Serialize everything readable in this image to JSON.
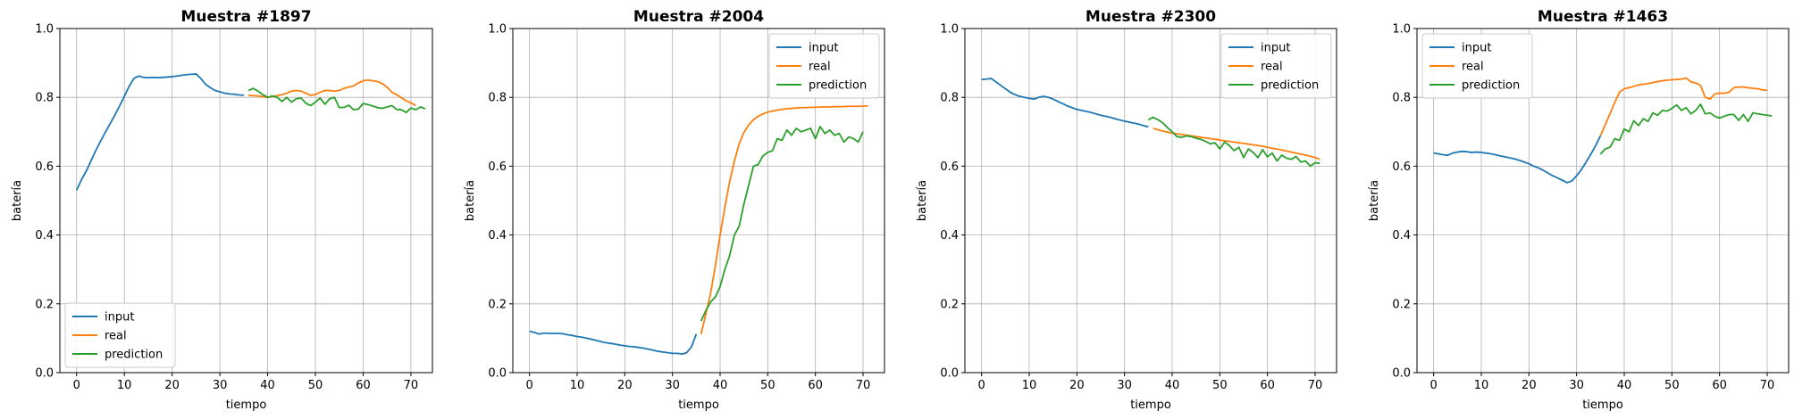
{
  "chart_data": [
    {
      "type": "line",
      "title": "Muestra #1897",
      "xlabel": "tiempo",
      "ylabel": "batería",
      "xlim": [
        -3.5,
        74.5
      ],
      "ylim": [
        0.0,
        1.0
      ],
      "xticks": [
        0,
        10,
        20,
        30,
        40,
        50,
        60,
        70
      ],
      "yticks": [
        0.0,
        0.2,
        0.4,
        0.6,
        0.8,
        1.0
      ],
      "xtick_labels": [
        "0",
        "10",
        "20",
        "30",
        "40",
        "50",
        "60",
        "70"
      ],
      "ytick_labels": [
        "0.0",
        "0.2",
        "0.4",
        "0.6",
        "0.8",
        "1.0"
      ],
      "grid": true,
      "legend_position": "lower-left",
      "series": [
        {
          "name": "input",
          "color": "#1f77b4",
          "x_start": 0,
          "values": [
            0.53,
            0.56,
            0.585,
            0.615,
            0.645,
            0.672,
            0.698,
            0.723,
            0.748,
            0.775,
            0.803,
            0.832,
            0.855,
            0.862,
            0.858,
            0.857,
            0.858,
            0.857,
            0.858,
            0.859,
            0.86,
            0.862,
            0.864,
            0.866,
            0.867,
            0.868,
            0.855,
            0.838,
            0.828,
            0.82,
            0.816,
            0.812,
            0.81,
            0.809,
            0.807,
            0.806
          ]
        },
        {
          "name": "real",
          "color": "#ff7f0e",
          "x_start": 36,
          "values": [
            0.806,
            0.805,
            0.804,
            0.802,
            0.8,
            0.802,
            0.805,
            0.808,
            0.812,
            0.818,
            0.82,
            0.818,
            0.812,
            0.806,
            0.808,
            0.815,
            0.82,
            0.82,
            0.818,
            0.82,
            0.826,
            0.83,
            0.833,
            0.842,
            0.848,
            0.85,
            0.848,
            0.846,
            0.84,
            0.83,
            0.815,
            0.808,
            0.799,
            0.79,
            0.784,
            0.776
          ]
        },
        {
          "name": "prediction",
          "color": "#2ca02c",
          "x_start": 36,
          "values": [
            0.82,
            0.826,
            0.818,
            0.808,
            0.8,
            0.804,
            0.8,
            0.788,
            0.8,
            0.786,
            0.796,
            0.798,
            0.783,
            0.776,
            0.786,
            0.798,
            0.78,
            0.796,
            0.8,
            0.77,
            0.771,
            0.777,
            0.764,
            0.766,
            0.782,
            0.779,
            0.775,
            0.77,
            0.768,
            0.772,
            0.776,
            0.765,
            0.764,
            0.756,
            0.769,
            0.764,
            0.772,
            0.767
          ]
        }
      ]
    },
    {
      "type": "line",
      "title": "Muestra #2004",
      "xlabel": "tiempo",
      "ylabel": "batería",
      "xlim": [
        -3.5,
        74.5
      ],
      "ylim": [
        0.0,
        1.0
      ],
      "xticks": [
        0,
        10,
        20,
        30,
        40,
        50,
        60,
        70
      ],
      "yticks": [
        0.0,
        0.2,
        0.4,
        0.6,
        0.8,
        1.0
      ],
      "xtick_labels": [
        "0",
        "10",
        "20",
        "30",
        "40",
        "50",
        "60",
        "70"
      ],
      "ytick_labels": [
        "0.0",
        "0.2",
        "0.4",
        "0.6",
        "0.8",
        "1.0"
      ],
      "grid": true,
      "legend_position": "upper-right",
      "series": [
        {
          "name": "input",
          "color": "#1f77b4",
          "x_start": 0,
          "values": [
            0.12,
            0.117,
            0.112,
            0.115,
            0.114,
            0.114,
            0.114,
            0.113,
            0.11,
            0.108,
            0.105,
            0.103,
            0.1,
            0.097,
            0.094,
            0.09,
            0.087,
            0.085,
            0.083,
            0.08,
            0.078,
            0.076,
            0.075,
            0.073,
            0.071,
            0.068,
            0.065,
            0.062,
            0.06,
            0.058,
            0.056,
            0.056,
            0.054,
            0.058,
            0.075,
            0.112
          ]
        },
        {
          "name": "real",
          "color": "#ff7f0e",
          "x_start": 36,
          "values": [
            0.112,
            0.17,
            0.23,
            0.31,
            0.4,
            0.48,
            0.555,
            0.615,
            0.665,
            0.698,
            0.72,
            0.735,
            0.745,
            0.752,
            0.757,
            0.76,
            0.763,
            0.765,
            0.767,
            0.768,
            0.769,
            0.77,
            0.77,
            0.771,
            0.771,
            0.772,
            0.772,
            0.772,
            0.773,
            0.773,
            0.773,
            0.774,
            0.774,
            0.774,
            0.775,
            0.775
          ]
        },
        {
          "name": "prediction",
          "color": "#2ca02c",
          "x_start": 36,
          "values": [
            0.15,
            0.18,
            0.205,
            0.22,
            0.25,
            0.3,
            0.34,
            0.4,
            0.425,
            0.49,
            0.545,
            0.6,
            0.605,
            0.63,
            0.64,
            0.645,
            0.68,
            0.675,
            0.705,
            0.69,
            0.71,
            0.7,
            0.705,
            0.71,
            0.68,
            0.715,
            0.695,
            0.705,
            0.69,
            0.695,
            0.67,
            0.685,
            0.68,
            0.67,
            0.7
          ]
        }
      ]
    },
    {
      "type": "line",
      "title": "Muestra #2300",
      "xlabel": "tiempo",
      "ylabel": "batería",
      "xlim": [
        -3.5,
        74.5
      ],
      "ylim": [
        0.0,
        1.0
      ],
      "xticks": [
        0,
        10,
        20,
        30,
        40,
        50,
        60,
        70
      ],
      "yticks": [
        0.0,
        0.2,
        0.4,
        0.6,
        0.8,
        1.0
      ],
      "xtick_labels": [
        "0",
        "10",
        "20",
        "30",
        "40",
        "50",
        "60",
        "70"
      ],
      "ytick_labels": [
        "0.0",
        "0.2",
        "0.4",
        "0.6",
        "0.8",
        "1.0"
      ],
      "grid": true,
      "legend_position": "upper-right",
      "series": [
        {
          "name": "input",
          "color": "#1f77b4",
          "x_start": 0,
          "values": [
            0.852,
            0.853,
            0.855,
            0.845,
            0.835,
            0.825,
            0.815,
            0.808,
            0.803,
            0.8,
            0.797,
            0.795,
            0.8,
            0.803,
            0.8,
            0.795,
            0.788,
            0.782,
            0.775,
            0.77,
            0.765,
            0.762,
            0.759,
            0.756,
            0.752,
            0.748,
            0.745,
            0.742,
            0.738,
            0.734,
            0.731,
            0.728,
            0.725,
            0.722,
            0.718,
            0.714
          ]
        },
        {
          "name": "real",
          "color": "#ff7f0e",
          "x_start": 36,
          "values": [
            0.71,
            0.706,
            0.702,
            0.699,
            0.696,
            0.694,
            0.692,
            0.69,
            0.688,
            0.686,
            0.684,
            0.682,
            0.68,
            0.678,
            0.676,
            0.674,
            0.672,
            0.67,
            0.668,
            0.666,
            0.664,
            0.662,
            0.66,
            0.658,
            0.655,
            0.652,
            0.65,
            0.647,
            0.644,
            0.641,
            0.638,
            0.635,
            0.632,
            0.629,
            0.625,
            0.62
          ]
        },
        {
          "name": "prediction",
          "color": "#2ca02c",
          "x_start": 35,
          "values": [
            0.735,
            0.742,
            0.735,
            0.726,
            0.712,
            0.7,
            0.686,
            0.684,
            0.688,
            0.686,
            0.681,
            0.678,
            0.672,
            0.665,
            0.668,
            0.65,
            0.67,
            0.66,
            0.645,
            0.655,
            0.625,
            0.65,
            0.64,
            0.625,
            0.648,
            0.627,
            0.638,
            0.615,
            0.632,
            0.623,
            0.62,
            0.628,
            0.612,
            0.615,
            0.6,
            0.61,
            0.608
          ]
        }
      ]
    },
    {
      "type": "line",
      "title": "Muestra #1463",
      "xlabel": "tiempo",
      "ylabel": "batería",
      "xlim": [
        -3.5,
        74.5
      ],
      "ylim": [
        0.0,
        1.0
      ],
      "xticks": [
        0,
        10,
        20,
        30,
        40,
        50,
        60,
        70
      ],
      "yticks": [
        0.0,
        0.2,
        0.4,
        0.6,
        0.8,
        1.0
      ],
      "xtick_labels": [
        "0",
        "10",
        "20",
        "30",
        "40",
        "50",
        "60",
        "70"
      ],
      "ytick_labels": [
        "0.0",
        "0.2",
        "0.4",
        "0.6",
        "0.8",
        "1.0"
      ],
      "grid": true,
      "legend_position": "upper-left",
      "series": [
        {
          "name": "input",
          "color": "#1f77b4",
          "x_start": 0,
          "values": [
            0.638,
            0.636,
            0.633,
            0.632,
            0.638,
            0.641,
            0.643,
            0.642,
            0.64,
            0.641,
            0.64,
            0.638,
            0.636,
            0.633,
            0.63,
            0.627,
            0.624,
            0.621,
            0.617,
            0.612,
            0.607,
            0.6,
            0.595,
            0.588,
            0.58,
            0.572,
            0.566,
            0.559,
            0.552,
            0.557,
            0.572,
            0.59,
            0.612,
            0.635,
            0.66,
            0.688
          ]
        },
        {
          "name": "real",
          "color": "#ff7f0e",
          "x_start": 35,
          "values": [
            0.688,
            0.72,
            0.752,
            0.785,
            0.815,
            0.825,
            0.828,
            0.832,
            0.836,
            0.838,
            0.84,
            0.843,
            0.846,
            0.848,
            0.85,
            0.851,
            0.852,
            0.853,
            0.856,
            0.845,
            0.842,
            0.835,
            0.8,
            0.795,
            0.81,
            0.812,
            0.812,
            0.815,
            0.828,
            0.83,
            0.83,
            0.828,
            0.826,
            0.825,
            0.822,
            0.82
          ]
        },
        {
          "name": "prediction",
          "color": "#2ca02c",
          "x_start": 35,
          "values": [
            0.635,
            0.65,
            0.655,
            0.68,
            0.675,
            0.708,
            0.7,
            0.732,
            0.718,
            0.738,
            0.73,
            0.755,
            0.748,
            0.762,
            0.76,
            0.768,
            0.778,
            0.762,
            0.77,
            0.752,
            0.762,
            0.78,
            0.752,
            0.755,
            0.745,
            0.74,
            0.745,
            0.75,
            0.75,
            0.733,
            0.75,
            0.73,
            0.755,
            0.752,
            0.75,
            0.748,
            0.746
          ]
        }
      ]
    }
  ]
}
